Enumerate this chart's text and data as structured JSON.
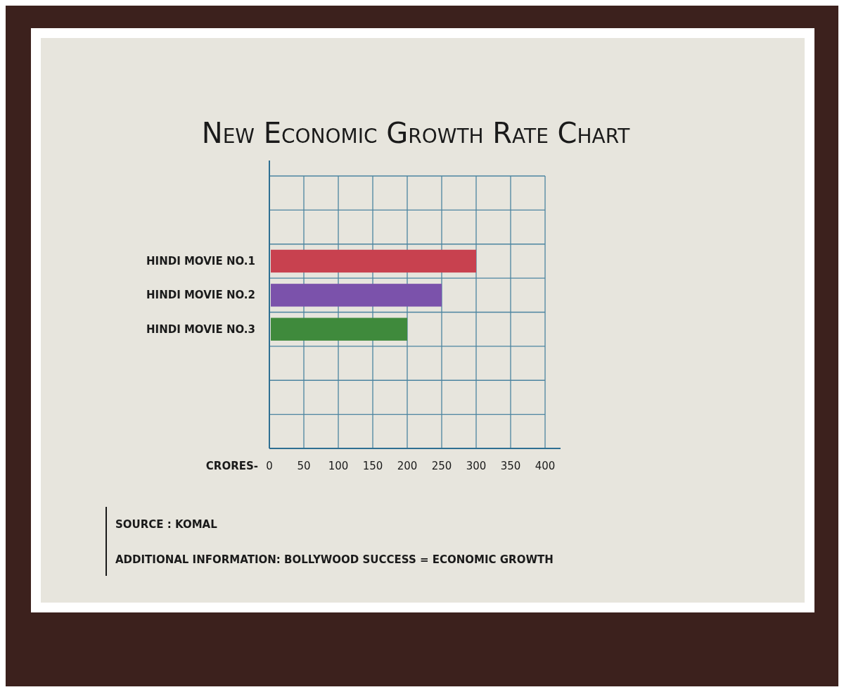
{
  "chart_data": {
    "type": "bar",
    "orientation": "horizontal",
    "title": "New Economic Growth Rate Chart",
    "categories": [
      null,
      null,
      "HINDI MOVIE NO.1",
      "HINDI MOVIE NO.2",
      "HINDI MOVIE NO.3",
      null,
      null,
      null
    ],
    "values": [
      null,
      null,
      300,
      250,
      200,
      null,
      null,
      null
    ],
    "colors": [
      null,
      null,
      "#c8414f",
      "#7b52ab",
      "#3f8a3c",
      null,
      null,
      null
    ],
    "xlabel": "CRORES-",
    "xlim": [
      0,
      400
    ],
    "xticks": [
      0,
      50,
      100,
      150,
      200,
      250,
      300,
      350,
      400
    ],
    "grid": true,
    "annotations": [
      "SOURCE : KOMAL",
      "ADDITIONAL INFORMATION: BOLLYWOOD SUCCESS = ECONOMIC GROWTH"
    ]
  }
}
